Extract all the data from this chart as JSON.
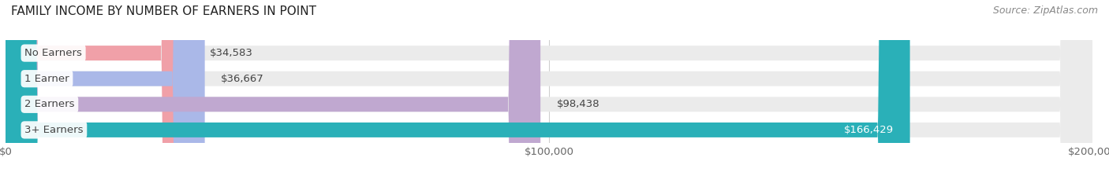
{
  "title": "FAMILY INCOME BY NUMBER OF EARNERS IN POINT",
  "source": "Source: ZipAtlas.com",
  "categories": [
    "No Earners",
    "1 Earner",
    "2 Earners",
    "3+ Earners"
  ],
  "values": [
    34583,
    36667,
    98438,
    166429
  ],
  "bar_colors": [
    "#f0a0a8",
    "#aab8e8",
    "#c0a8d0",
    "#2ab0b8"
  ],
  "value_labels": [
    "$34,583",
    "$36,667",
    "$98,438",
    "$166,429"
  ],
  "label_inside_bar": [
    false,
    false,
    false,
    true
  ],
  "xlim": [
    0,
    200000
  ],
  "xticks": [
    0,
    100000,
    200000
  ],
  "xtick_labels": [
    "$0",
    "$100,000",
    "$200,000"
  ],
  "title_fontsize": 11,
  "source_fontsize": 9,
  "label_fontsize": 9.5,
  "value_fontsize": 9.5,
  "tick_fontsize": 9.5,
  "background_color": "#ffffff",
  "bar_background_color": "#ebebeb",
  "bar_height": 0.58,
  "category_text_color": "#444444",
  "value_text_color_outside": "#444444",
  "value_text_color_inside": "#ffffff"
}
